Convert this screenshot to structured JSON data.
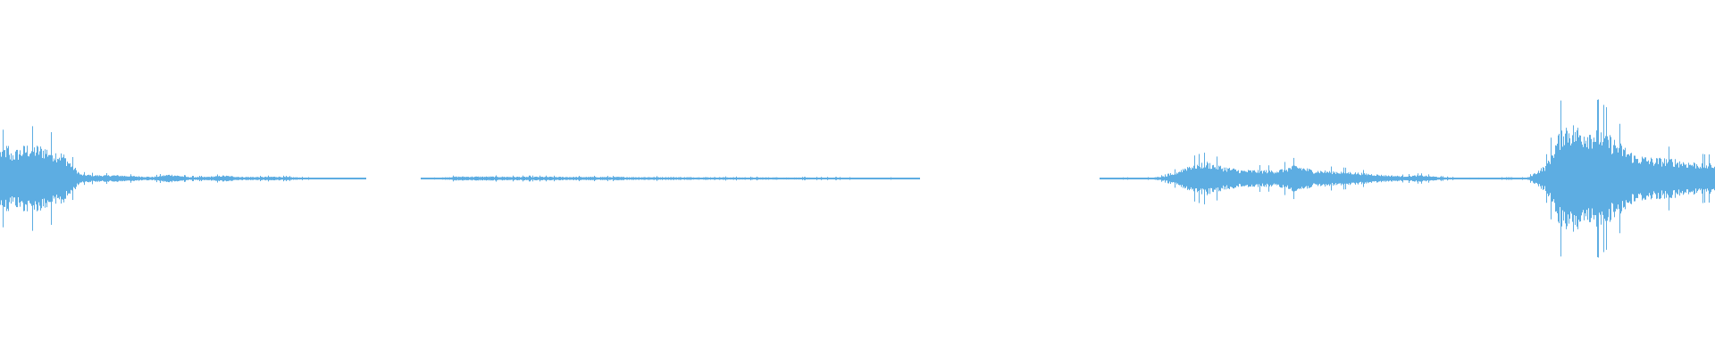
{
  "chart_data": {
    "type": "area",
    "title": "",
    "xlabel": "",
    "ylabel": "",
    "ylim": [
      -1,
      1
    ],
    "grid": false,
    "color": "#5dade2",
    "background": "#ffffff",
    "envelope_amplitude": [
      0.15,
      0.2,
      0.19,
      0.15,
      0.025,
      0.02,
      0.02,
      0.015,
      0.01,
      0.025,
      0.01,
      0.01,
      0.018,
      0.01,
      0.01,
      0.012,
      0.008,
      0.004,
      0.005,
      0.003,
      0,
      0,
      0,
      0,
      0.005,
      0.012,
      0.012,
      0.012,
      0.011,
      0.011,
      0.011,
      0.01,
      0.01,
      0.01,
      0.01,
      0.009,
      0.009,
      0.009,
      0.008,
      0.008,
      0.008,
      0.007,
      0.007,
      0.007,
      0.006,
      0.006,
      0.006,
      0.005,
      0.005,
      0.005,
      0.004,
      0,
      0,
      0,
      0,
      0,
      0,
      0,
      0,
      0,
      0,
      0,
      0.004,
      0.005,
      0.005,
      0.02,
      0.08,
      0.1,
      0.07,
      0.05,
      0.05,
      0.05,
      0.08,
      0.05,
      0.045,
      0.04,
      0.03,
      0.02,
      0.015,
      0.02,
      0.01,
      0.005,
      0.003,
      0.005,
      0.005,
      0.005,
      0.08,
      0.33,
      0.3,
      0.3,
      0.22,
      0.14,
      0.12,
      0.12,
      0.1,
      0.09
    ]
  }
}
